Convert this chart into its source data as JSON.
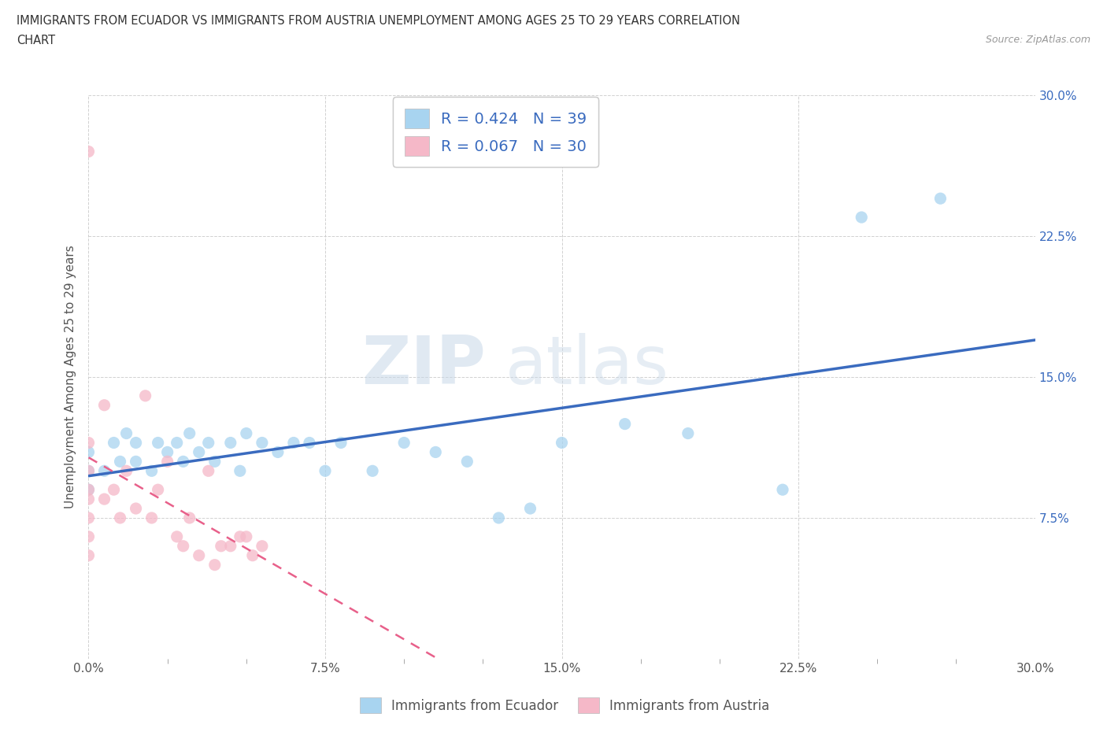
{
  "title_line1": "IMMIGRANTS FROM ECUADOR VS IMMIGRANTS FROM AUSTRIA UNEMPLOYMENT AMONG AGES 25 TO 29 YEARS CORRELATION",
  "title_line2": "CHART",
  "source": "Source: ZipAtlas.com",
  "ylabel": "Unemployment Among Ages 25 to 29 years",
  "xlim": [
    0.0,
    0.3
  ],
  "ylim": [
    0.0,
    0.3
  ],
  "xticks": [
    0.0,
    0.075,
    0.15,
    0.225,
    0.3
  ],
  "yticks": [
    0.0,
    0.075,
    0.15,
    0.225,
    0.3
  ],
  "xtick_labels": [
    "0.0%",
    "7.5%",
    "15.0%",
    "22.5%",
    "30.0%"
  ],
  "ytick_labels_right": [
    "",
    "7.5%",
    "15.0%",
    "22.5%",
    "30.0%"
  ],
  "ecuador_scatter_color": "#a8d4f0",
  "austria_scatter_color": "#f5b8c8",
  "ecuador_line_color": "#3a6bbf",
  "austria_line_color": "#e8608a",
  "ecuador_R": 0.424,
  "ecuador_N": 39,
  "austria_R": 0.067,
  "austria_N": 30,
  "watermark_zip": "ZIP",
  "watermark_atlas": "atlas",
  "ecuador_x": [
    0.0,
    0.0,
    0.0,
    0.005,
    0.008,
    0.01,
    0.012,
    0.015,
    0.015,
    0.02,
    0.022,
    0.025,
    0.028,
    0.03,
    0.032,
    0.035,
    0.038,
    0.04,
    0.045,
    0.048,
    0.05,
    0.055,
    0.06,
    0.065,
    0.07,
    0.075,
    0.08,
    0.09,
    0.1,
    0.11,
    0.12,
    0.13,
    0.14,
    0.15,
    0.17,
    0.19,
    0.22,
    0.245,
    0.27
  ],
  "ecuador_y": [
    0.09,
    0.1,
    0.11,
    0.1,
    0.115,
    0.105,
    0.12,
    0.105,
    0.115,
    0.1,
    0.115,
    0.11,
    0.115,
    0.105,
    0.12,
    0.11,
    0.115,
    0.105,
    0.115,
    0.1,
    0.12,
    0.115,
    0.11,
    0.115,
    0.115,
    0.1,
    0.115,
    0.1,
    0.115,
    0.11,
    0.105,
    0.075,
    0.08,
    0.115,
    0.125,
    0.12,
    0.09,
    0.235,
    0.245
  ],
  "austria_x": [
    0.0,
    0.0,
    0.0,
    0.0,
    0.0,
    0.0,
    0.0,
    0.0,
    0.005,
    0.005,
    0.008,
    0.01,
    0.012,
    0.015,
    0.018,
    0.02,
    0.022,
    0.025,
    0.028,
    0.03,
    0.032,
    0.035,
    0.038,
    0.04,
    0.042,
    0.045,
    0.048,
    0.05,
    0.052,
    0.055
  ],
  "austria_y": [
    0.055,
    0.065,
    0.075,
    0.085,
    0.09,
    0.1,
    0.115,
    0.27,
    0.085,
    0.135,
    0.09,
    0.075,
    0.1,
    0.08,
    0.14,
    0.075,
    0.09,
    0.105,
    0.065,
    0.06,
    0.075,
    0.055,
    0.1,
    0.05,
    0.06,
    0.06,
    0.065,
    0.065,
    0.055,
    0.06
  ]
}
